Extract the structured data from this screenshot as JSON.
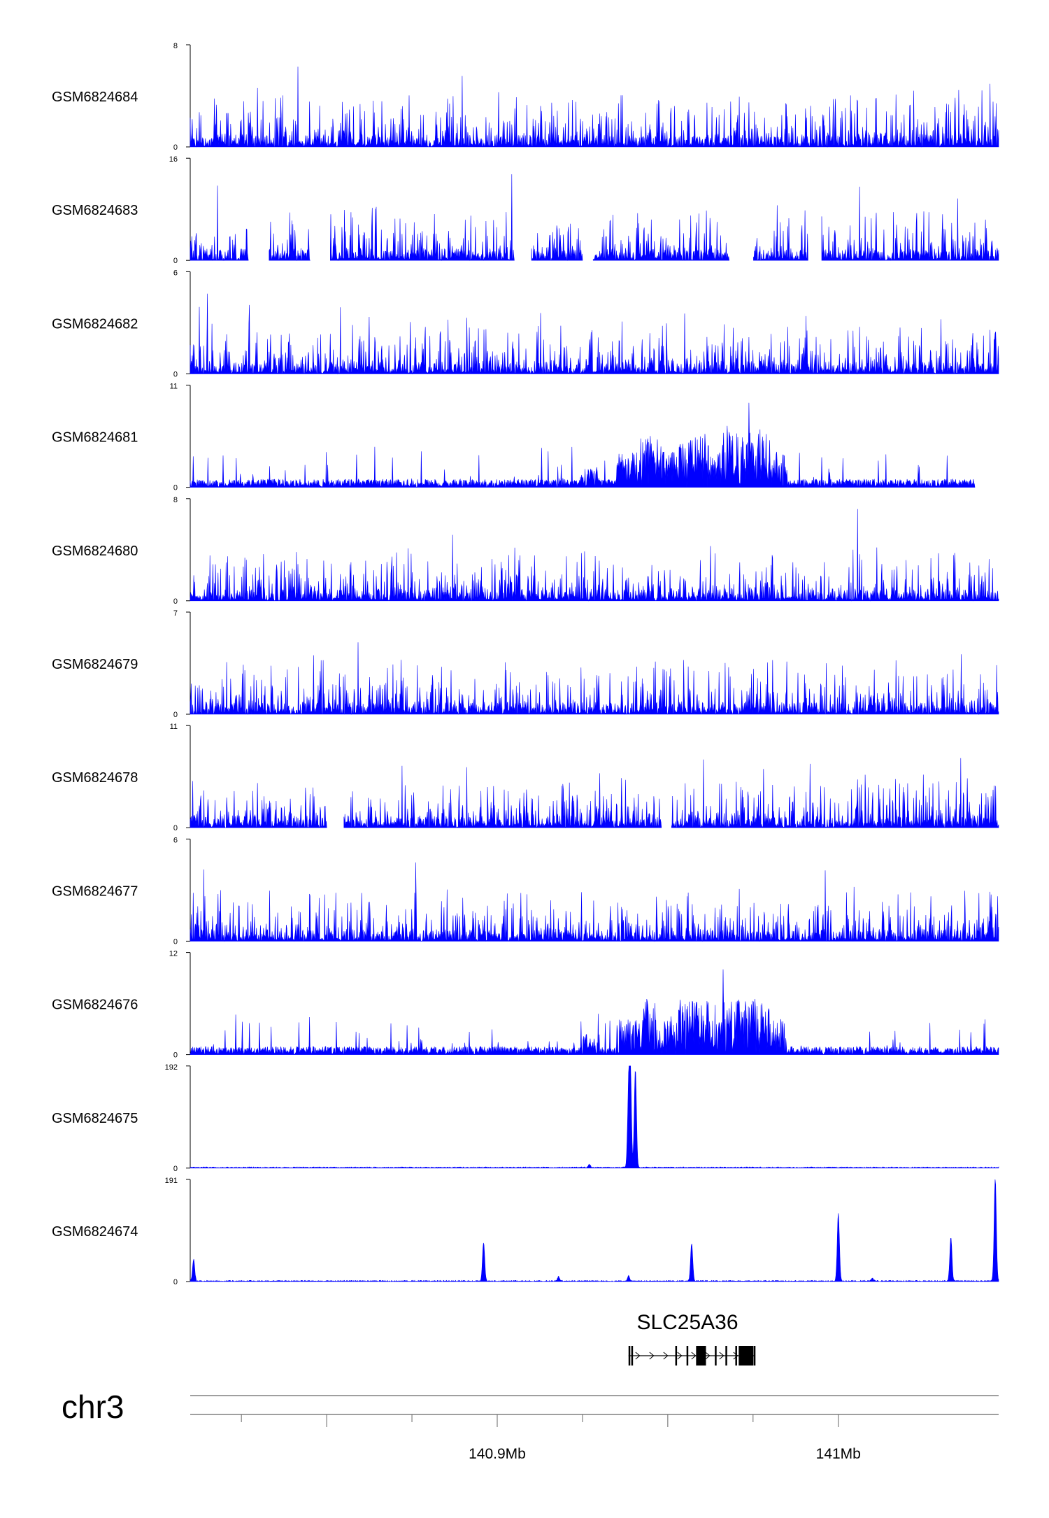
{
  "chart_data": {
    "type": "area",
    "chromosome": "chr3",
    "x_range_mb": [
      140.81,
      141.047
    ],
    "x_ticks_mb": [
      140.85,
      140.9,
      140.95,
      141.0
    ],
    "x_tick_labels": {
      "140.9": "140.9Mb",
      "141.0": "141Mb"
    },
    "color": "#0000ff",
    "tracks": [
      {
        "name": "GSM6824684",
        "ymax": "8",
        "ymin": "0",
        "max": 8,
        "pattern": "noise",
        "gaps": []
      },
      {
        "name": "GSM6824683",
        "ymax": "16",
        "ymin": "0",
        "max": 16,
        "pattern": "noise",
        "gaps": [
          [
            140.827,
            140.833
          ],
          [
            140.845,
            140.851
          ],
          [
            140.905,
            140.91
          ],
          [
            140.925,
            140.928
          ],
          [
            140.968,
            140.975
          ],
          [
            140.991,
            140.995
          ]
        ]
      },
      {
        "name": "GSM6824682",
        "ymax": "6",
        "ymin": "0",
        "max": 6,
        "pattern": "noise",
        "gaps": []
      },
      {
        "name": "GSM6824681",
        "ymax": "11",
        "ymin": "0",
        "max": 11,
        "pattern": "broad",
        "gaps": [
          [
            141.04,
            141.047
          ]
        ]
      },
      {
        "name": "GSM6824680",
        "ymax": "8",
        "ymin": "0",
        "max": 8,
        "pattern": "noise",
        "gaps": []
      },
      {
        "name": "GSM6824679",
        "ymax": "7",
        "ymin": "0",
        "max": 7,
        "pattern": "noise",
        "gaps": []
      },
      {
        "name": "GSM6824678",
        "ymax": "11",
        "ymin": "0",
        "max": 11,
        "pattern": "noise",
        "gaps": [
          [
            140.85,
            140.855
          ],
          [
            140.948,
            140.951
          ]
        ]
      },
      {
        "name": "GSM6824677",
        "ymax": "6",
        "ymin": "0",
        "max": 6,
        "pattern": "noise",
        "gaps": []
      },
      {
        "name": "GSM6824676",
        "ymax": "12",
        "ymin": "0",
        "max": 12,
        "pattern": "broad",
        "gaps": []
      },
      {
        "name": "GSM6824675",
        "ymax": "192",
        "ymin": "0",
        "max": 192,
        "pattern": "peaks",
        "peaks": [
          [
            140.939,
            192
          ],
          [
            140.9405,
            185
          ],
          [
            140.9385,
            120
          ],
          [
            140.927,
            6
          ]
        ]
      },
      {
        "name": "GSM6824674",
        "ymax": "191",
        "ymin": "0",
        "max": 191,
        "pattern": "peaks",
        "peaks": [
          [
            140.811,
            40
          ],
          [
            140.896,
            72
          ],
          [
            140.918,
            8
          ],
          [
            140.957,
            70
          ],
          [
            140.9385,
            10
          ],
          [
            141.033,
            82
          ],
          [
            141.0,
            126
          ],
          [
            141.046,
            191
          ],
          [
            141.01,
            5
          ]
        ]
      }
    ],
    "gene": {
      "name": "SLC25A36",
      "start_mb": 140.9385,
      "end_mb": 140.9755,
      "utr_blocks_mb": [
        [
          140.9385,
          140.9389
        ],
        [
          140.9393,
          140.9396
        ]
      ],
      "exons_mb": [
        [
          140.9522,
          140.9527
        ],
        [
          140.9555,
          140.9559
        ],
        [
          140.9583,
          140.9612
        ],
        [
          140.9638,
          140.9642
        ],
        [
          140.9669,
          140.9674
        ],
        [
          140.9698,
          140.9702
        ],
        [
          140.9728,
          140.9732
        ],
        [
          140.9752,
          140.9755
        ]
      ],
      "cds_block_mb": [
        140.9708,
        140.9751
      ],
      "strand": "+"
    }
  }
}
